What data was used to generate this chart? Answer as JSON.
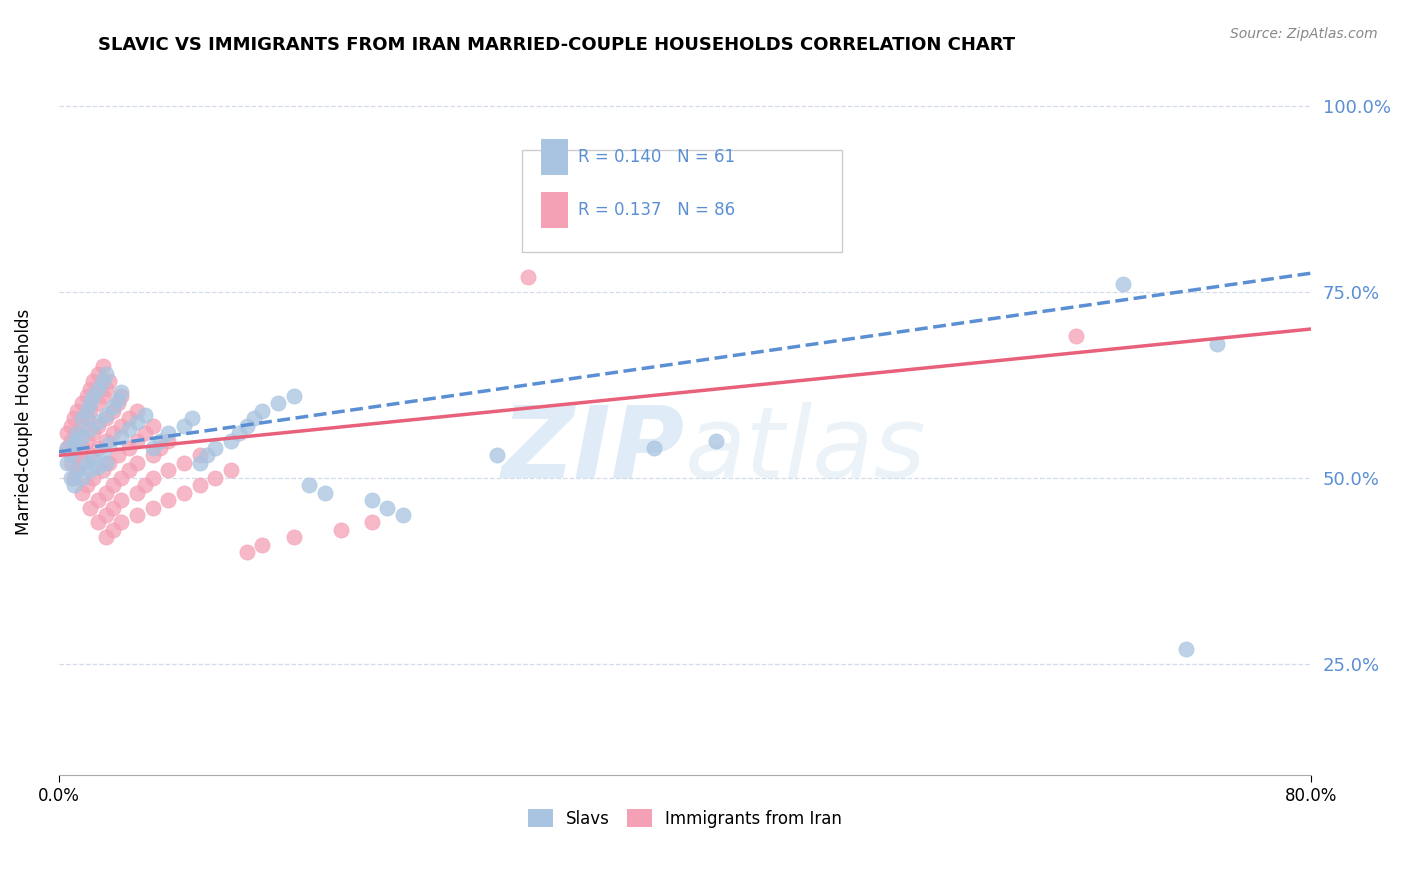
{
  "title": "SLAVIC VS IMMIGRANTS FROM IRAN MARRIED-COUPLE HOUSEHOLDS CORRELATION CHART",
  "source_text": "Source: ZipAtlas.com",
  "ylabel": "Married-couple Households",
  "xmin": 0.0,
  "xmax": 0.8,
  "ymin": 0.1,
  "ymax": 1.05,
  "ytick_values": [
    0.25,
    0.5,
    0.75,
    1.0
  ],
  "ytick_labels": [
    "25.0%",
    "50.0%",
    "75.0%",
    "100.0%"
  ],
  "watermark": "ZIPatlas",
  "slavs_color": "#a8c4e0",
  "iran_color": "#f4a0b5",
  "trend_slavs_color": "#5b8fd4",
  "trend_iran_color": "#e8607a",
  "tick_color": "#5b8fd4",
  "background_color": "#ffffff",
  "grid_color": "#d0d8e8",
  "slavs_trend_start_y": 0.535,
  "slavs_trend_end_y": 0.775,
  "iran_trend_start_y": 0.53,
  "iran_trend_end_y": 0.7,
  "slavs_x": [
    0.005,
    0.01,
    0.012,
    0.015,
    0.018,
    0.02,
    0.022,
    0.025,
    0.028,
    0.03,
    0.005,
    0.008,
    0.012,
    0.015,
    0.02,
    0.025,
    0.03,
    0.035,
    0.038,
    0.04,
    0.008,
    0.012,
    0.018,
    0.022,
    0.028,
    0.032,
    0.04,
    0.045,
    0.05,
    0.055,
    0.01,
    0.015,
    0.02,
    0.025,
    0.03,
    0.06,
    0.065,
    0.07,
    0.08,
    0.085,
    0.09,
    0.095,
    0.1,
    0.11,
    0.115,
    0.12,
    0.125,
    0.13,
    0.14,
    0.15,
    0.16,
    0.17,
    0.2,
    0.21,
    0.22,
    0.28,
    0.38,
    0.42,
    0.68,
    0.72,
    0.74
  ],
  "slavs_y": [
    0.54,
    0.55,
    0.56,
    0.58,
    0.59,
    0.6,
    0.61,
    0.62,
    0.63,
    0.64,
    0.52,
    0.53,
    0.545,
    0.555,
    0.565,
    0.575,
    0.585,
    0.595,
    0.605,
    0.615,
    0.5,
    0.51,
    0.52,
    0.525,
    0.535,
    0.545,
    0.555,
    0.565,
    0.575,
    0.585,
    0.49,
    0.5,
    0.51,
    0.515,
    0.52,
    0.54,
    0.55,
    0.56,
    0.57,
    0.58,
    0.52,
    0.53,
    0.54,
    0.55,
    0.56,
    0.57,
    0.58,
    0.59,
    0.6,
    0.61,
    0.49,
    0.48,
    0.47,
    0.46,
    0.45,
    0.53,
    0.54,
    0.55,
    0.76,
    0.27,
    0.68
  ],
  "iran_x": [
    0.005,
    0.008,
    0.01,
    0.012,
    0.015,
    0.018,
    0.02,
    0.022,
    0.025,
    0.028,
    0.005,
    0.008,
    0.012,
    0.015,
    0.018,
    0.02,
    0.025,
    0.028,
    0.03,
    0.032,
    0.008,
    0.01,
    0.015,
    0.018,
    0.022,
    0.025,
    0.03,
    0.035,
    0.038,
    0.04,
    0.01,
    0.012,
    0.015,
    0.02,
    0.025,
    0.03,
    0.035,
    0.04,
    0.045,
    0.05,
    0.015,
    0.018,
    0.022,
    0.028,
    0.032,
    0.038,
    0.045,
    0.05,
    0.055,
    0.06,
    0.02,
    0.025,
    0.03,
    0.035,
    0.04,
    0.045,
    0.05,
    0.06,
    0.065,
    0.07,
    0.025,
    0.03,
    0.035,
    0.04,
    0.05,
    0.055,
    0.06,
    0.07,
    0.08,
    0.09,
    0.03,
    0.035,
    0.04,
    0.05,
    0.06,
    0.07,
    0.08,
    0.09,
    0.1,
    0.11,
    0.12,
    0.13,
    0.15,
    0.18,
    0.2,
    0.3,
    0.65
  ],
  "iran_y": [
    0.56,
    0.57,
    0.58,
    0.59,
    0.6,
    0.61,
    0.62,
    0.63,
    0.64,
    0.65,
    0.54,
    0.55,
    0.56,
    0.57,
    0.58,
    0.59,
    0.6,
    0.61,
    0.62,
    0.63,
    0.52,
    0.53,
    0.54,
    0.55,
    0.56,
    0.57,
    0.58,
    0.59,
    0.6,
    0.61,
    0.5,
    0.51,
    0.52,
    0.53,
    0.54,
    0.55,
    0.56,
    0.57,
    0.58,
    0.59,
    0.48,
    0.49,
    0.5,
    0.51,
    0.52,
    0.53,
    0.54,
    0.55,
    0.56,
    0.57,
    0.46,
    0.47,
    0.48,
    0.49,
    0.5,
    0.51,
    0.52,
    0.53,
    0.54,
    0.55,
    0.44,
    0.45,
    0.46,
    0.47,
    0.48,
    0.49,
    0.5,
    0.51,
    0.52,
    0.53,
    0.42,
    0.43,
    0.44,
    0.45,
    0.46,
    0.47,
    0.48,
    0.49,
    0.5,
    0.51,
    0.4,
    0.41,
    0.42,
    0.43,
    0.44,
    0.77,
    0.69
  ]
}
